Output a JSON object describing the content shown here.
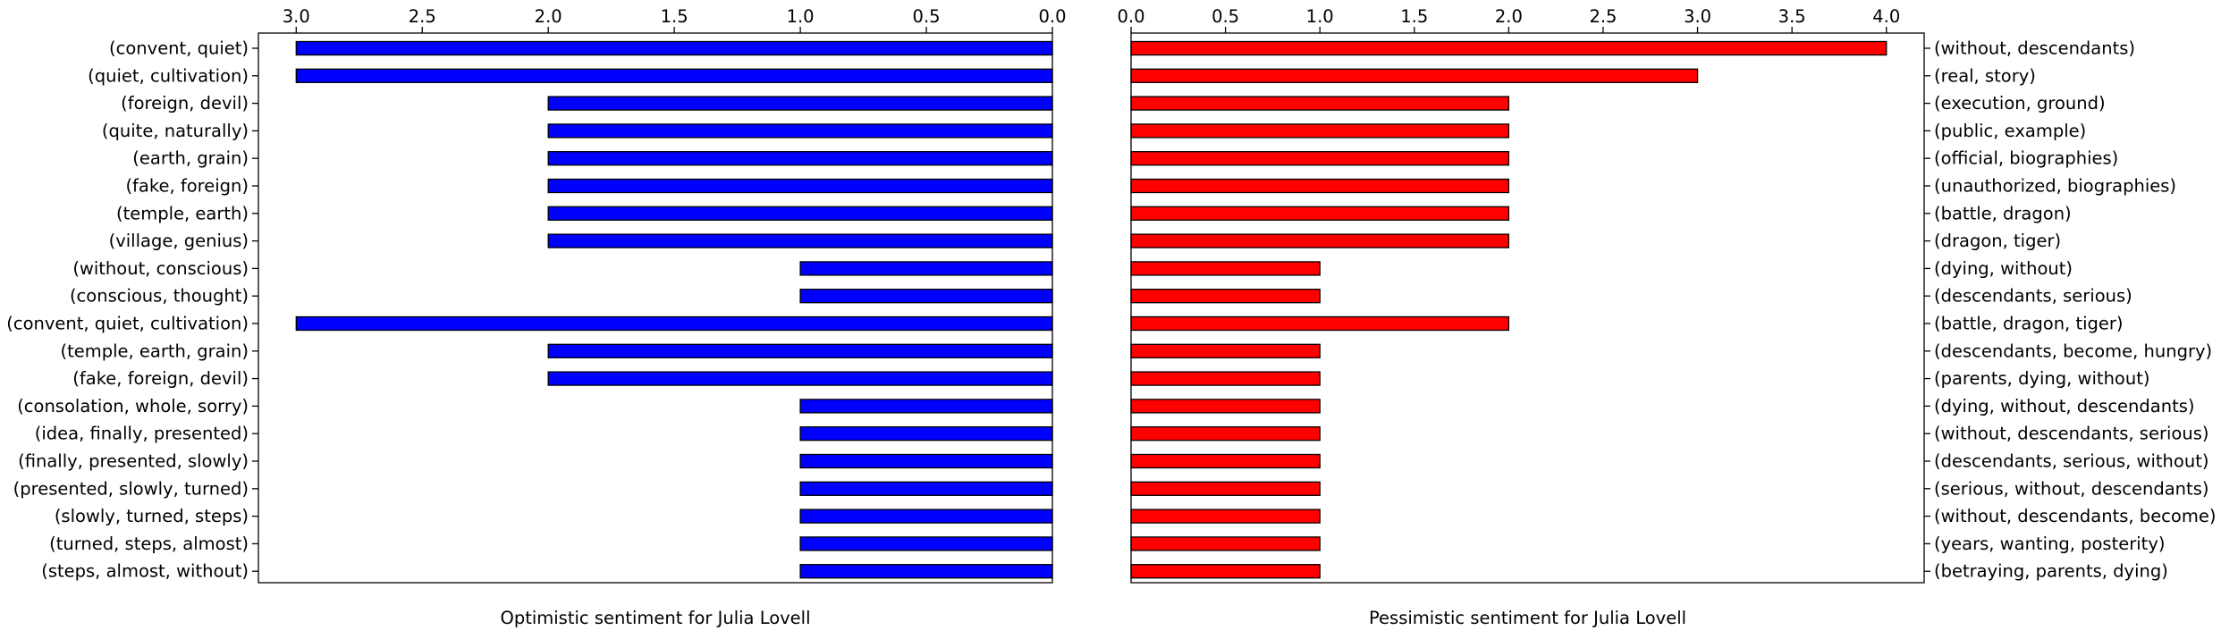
{
  "chart_data": [
    {
      "type": "bar",
      "orientation": "horizontal",
      "direction": "reversed",
      "color": "#0000ff",
      "edge_color": "#000000",
      "xlabel": "Optimistic sentiment for Julia Lovell",
      "xlim": [
        3.15,
        0
      ],
      "xticks": [
        "3.0",
        "2.5",
        "2.0",
        "1.5",
        "1.0",
        "0.5",
        "0.0"
      ],
      "xtick_values": [
        3.0,
        2.5,
        2.0,
        1.5,
        1.0,
        0.5,
        0.0
      ],
      "tick_position": "top",
      "label_side": "left",
      "grid": false,
      "categories": [
        "(convent, quiet)",
        "(quiet, cultivation)",
        "(foreign, devil)",
        "(quite, naturally)",
        "(earth, grain)",
        "(fake, foreign)",
        "(temple, earth)",
        "(village, genius)",
        "(without, conscious)",
        "(conscious, thought)",
        "(convent, quiet, cultivation)",
        "(temple, earth, grain)",
        "(fake, foreign, devil)",
        "(consolation, whole, sorry)",
        "(idea, finally, presented)",
        "(finally, presented, slowly)",
        "(presented, slowly, turned)",
        "(slowly, turned, steps)",
        "(turned, steps, almost)",
        "(steps, almost, without)"
      ],
      "values": [
        3,
        3,
        2,
        2,
        2,
        2,
        2,
        2,
        1,
        1,
        3,
        2,
        2,
        1,
        1,
        1,
        1,
        1,
        1,
        1
      ]
    },
    {
      "type": "bar",
      "orientation": "horizontal",
      "direction": "normal",
      "color": "#ff0000",
      "edge_color": "#000000",
      "xlabel": "Pessimistic sentiment for Julia Lovell",
      "xlim": [
        0,
        4.2
      ],
      "xticks": [
        "0.0",
        "0.5",
        "1.0",
        "1.5",
        "2.0",
        "2.5",
        "3.0",
        "3.5",
        "4.0"
      ],
      "xtick_values": [
        0.0,
        0.5,
        1.0,
        1.5,
        2.0,
        2.5,
        3.0,
        3.5,
        4.0
      ],
      "tick_position": "top",
      "label_side": "right",
      "grid": false,
      "categories": [
        "(without, descendants)",
        "(real, story)",
        "(execution, ground)",
        "(public, example)",
        "(official, biographies)",
        "(unauthorized, biographies)",
        "(battle, dragon)",
        "(dragon, tiger)",
        "(dying, without)",
        "(descendants, serious)",
        "(battle, dragon, tiger)",
        "(descendants, become, hungry)",
        "(parents, dying, without)",
        "(dying, without, descendants)",
        "(without, descendants, serious)",
        "(descendants, serious, without)",
        "(serious, without, descendants)",
        "(without, descendants, become)",
        "(years, wanting, posterity)",
        "(betraying, parents, dying)"
      ],
      "values": [
        4,
        3,
        2,
        2,
        2,
        2,
        2,
        2,
        1,
        1,
        2,
        1,
        1,
        1,
        1,
        1,
        1,
        1,
        1,
        1
      ]
    }
  ]
}
